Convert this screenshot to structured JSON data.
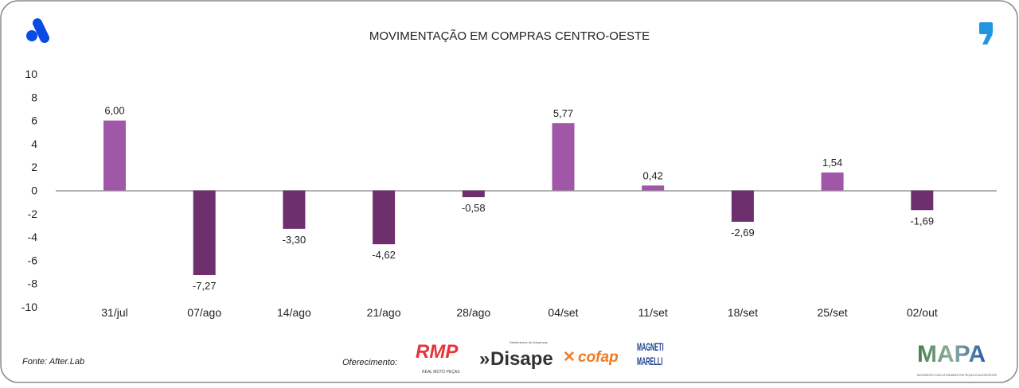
{
  "chart_data": {
    "type": "bar",
    "title": "MOVIMENTAÇÃO EM COMPRAS CENTRO-OESTE",
    "categories": [
      "31/jul",
      "07/ago",
      "14/ago",
      "21/ago",
      "28/ago",
      "04/set",
      "11/set",
      "18/set",
      "25/set",
      "02/out"
    ],
    "values": [
      6.0,
      -7.27,
      -3.3,
      -4.62,
      -0.58,
      5.77,
      0.42,
      -2.69,
      1.54,
      -1.69
    ],
    "value_labels": [
      "6,00",
      "-7,27",
      "-3,30",
      "-4,62",
      "-0,58",
      "5,77",
      "0,42",
      "-2,69",
      "1,54",
      "-1,69"
    ],
    "ylim": [
      -10,
      10
    ],
    "yticks": [
      "10",
      "8",
      "6",
      "4",
      "2",
      "0",
      "-2",
      "-4",
      "-6",
      "-8",
      "-10"
    ],
    "grid": false,
    "colors": {
      "positive": "#a157a8",
      "negative": "#6d2f6d",
      "axis": "#999999"
    }
  },
  "footer": {
    "source": "Fonte: After.Lab",
    "sponsor_label": "Oferecimento:",
    "sponsors": [
      "RMP",
      "Disape",
      "cofap",
      "MAGNETI MARELLI"
    ],
    "sponsor_sub": {
      "rmp": "REAL MOTO PEÇAS",
      "disape": "Distribuidora de Autopeças"
    },
    "mapa_logo": "MAPA",
    "mapa_sub": "MOVIMENTO DAS ATIVIDADES EM PEÇAS E ACESSÓRIOS"
  },
  "icons": {
    "left_logo": "afterlab-logo",
    "right_logo": "comma-logo"
  },
  "brand_color": "#0a4be6",
  "accent_color": "#2196e0"
}
